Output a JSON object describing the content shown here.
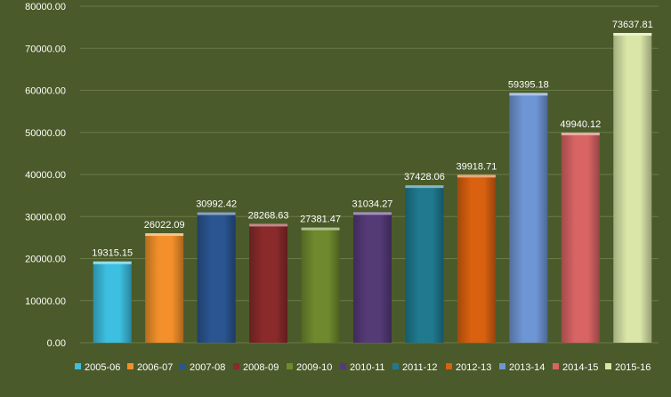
{
  "chart_data": {
    "type": "bar",
    "categories": [
      "2005-06",
      "2006-07",
      "2007-08",
      "2008-09",
      "2009-10",
      "2010-11",
      "2011-12",
      "2012-13",
      "2013-14",
      "2014-15",
      "2015-16"
    ],
    "values": [
      19315.15,
      26022.09,
      30992.42,
      28268.63,
      27381.47,
      31034.27,
      37428.06,
      39918.71,
      59395.18,
      49940.12,
      73637.81
    ],
    "value_labels": [
      "19315.15",
      "26022.09",
      "30992.42",
      "28268.63",
      "27381.47",
      "31034.27",
      "37428.06",
      "39918.71",
      "59395.18",
      "49940.12",
      "73637.81"
    ],
    "colors": [
      "#3cbfe0",
      "#f3902b",
      "#2a5590",
      "#8a2a2a",
      "#6f8a2e",
      "#553a78",
      "#1f7a90",
      "#d9610f",
      "#6e95d4",
      "#d86464",
      "#d9e6a8"
    ],
    "ylim": [
      0,
      80000
    ],
    "yticks": [
      "0.00",
      "10000.00",
      "20000.00",
      "30000.00",
      "40000.00",
      "50000.00",
      "60000.00",
      "70000.00",
      "80000.00"
    ],
    "ytick_values": [
      0,
      10000,
      20000,
      30000,
      40000,
      50000,
      60000,
      70000,
      80000
    ],
    "grid": true,
    "legend_position": "bottom",
    "background": "#4a5a2a",
    "gridline_color": "#6b7a45"
  }
}
